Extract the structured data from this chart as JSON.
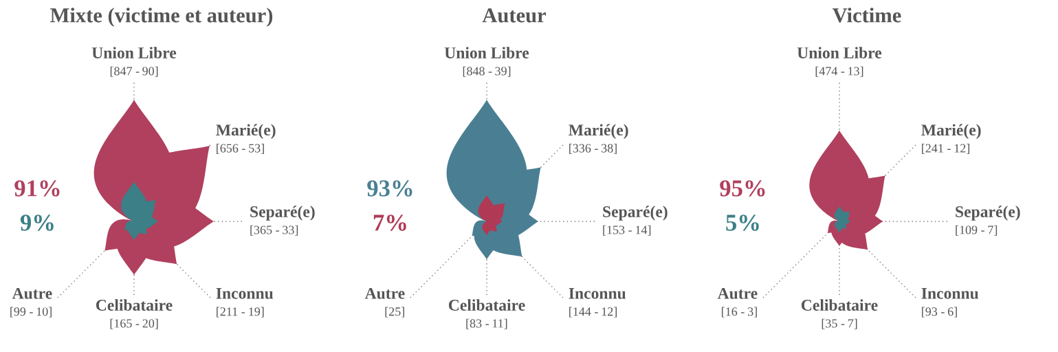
{
  "chart_data": [
    {
      "type": "other",
      "title": "Mixte (victime et auteur)",
      "categories": [
        "Union Libre",
        "Marié(e)",
        "Separé(e)",
        "Inconnu",
        "Celibataire",
        "Autre"
      ],
      "series": [
        {
          "color": "#b0405e",
          "values": [
            847,
            656,
            365,
            211,
            165,
            99
          ],
          "value_labels": [
            "[847 -",
            "[656 -",
            "[365 -",
            "[211 -",
            "[165 -",
            "[99 -"
          ]
        },
        {
          "color": "#3c7f87",
          "values": [
            90,
            53,
            33,
            19,
            20,
            10
          ],
          "value_labels": [
            "90]",
            "53]",
            "33]",
            "19]",
            "20]",
            "10]"
          ]
        }
      ],
      "annotations": [
        "91%",
        "9%"
      ]
    },
    {
      "type": "other",
      "title": "Auteur",
      "categories": [
        "Union Libre",
        "Marié(e)",
        "Separé(e)",
        "Inconnu",
        "Celibataire",
        "Autre"
      ],
      "series": [
        {
          "color": "#4a7f93",
          "values": [
            848,
            336,
            153,
            144,
            83,
            25
          ],
          "value_labels": [
            "[848 -",
            "[336 -",
            "[153 -",
            "[144 -",
            "[83 -",
            "[25]"
          ]
        },
        {
          "color": "#b03a55",
          "values": [
            39,
            38,
            14,
            12,
            11,
            null
          ],
          "value_labels": [
            "39]",
            "38]",
            "14]",
            "12]",
            "11]",
            null
          ]
        }
      ],
      "annotations": [
        "93%",
        "7%"
      ]
    },
    {
      "type": "other",
      "title": "Victime",
      "categories": [
        "Union Libre",
        "Marié(e)",
        "Separé(e)",
        "Inconnu",
        "Celibataire",
        "Autre"
      ],
      "series": [
        {
          "color": "#b0405e",
          "values": [
            474,
            241,
            109,
            93,
            35,
            16
          ],
          "value_labels": [
            "[474 -",
            "[241 -",
            "[109 -",
            "[93 -",
            "[35 -",
            "[16 -"
          ]
        },
        {
          "color": "#3c7f87",
          "values": [
            13,
            12,
            7,
            6,
            7,
            3
          ],
          "value_labels": [
            "13]",
            "12]",
            "7]",
            "6]",
            "7]",
            "3]"
          ]
        }
      ],
      "annotations": [
        "95%",
        "5%"
      ]
    }
  ]
}
